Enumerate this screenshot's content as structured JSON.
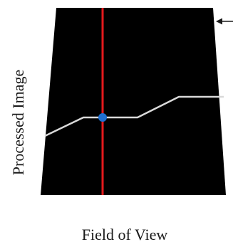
{
  "figure": {
    "y_axis_label": "Processed Image",
    "x_axis_label": "Field of View"
  },
  "colors": {
    "panel_fill": "#000000",
    "scan_line": "#e41a1c",
    "profile_line": "#d9d9d9",
    "marker": "#1f6fd1",
    "pointer_arrow": "#1a1a1a",
    "text": "#1a1a1a"
  }
}
